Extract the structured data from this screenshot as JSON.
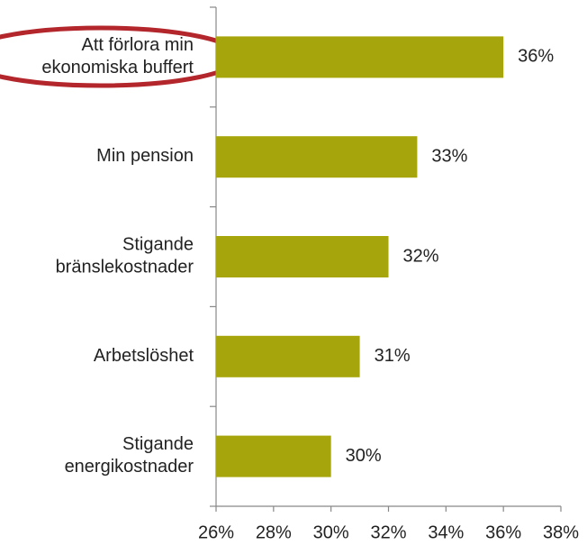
{
  "chart_data": {
    "type": "bar",
    "orientation": "horizontal",
    "categories": [
      "Att förlora min\nekonomiska buffert",
      "Min pension",
      "Stigande\nbränslekostnader",
      "Arbetslöshet",
      "Stigande\nenergikostnader"
    ],
    "values": [
      36,
      33,
      32,
      31,
      30
    ],
    "value_labels": [
      "36%",
      "33%",
      "32%",
      "31%",
      "30%"
    ],
    "color": "#a6a60c",
    "xlim": [
      26,
      38
    ],
    "xticks": [
      {
        "value": 26,
        "label": "26%"
      },
      {
        "value": 28,
        "label": "28%"
      },
      {
        "value": 30,
        "label": "30%"
      },
      {
        "value": 32,
        "label": "32%"
      },
      {
        "value": 34,
        "label": "34%"
      },
      {
        "value": 36,
        "label": "36%"
      },
      {
        "value": 38,
        "label": "38%"
      }
    ],
    "grid": false
  }
}
